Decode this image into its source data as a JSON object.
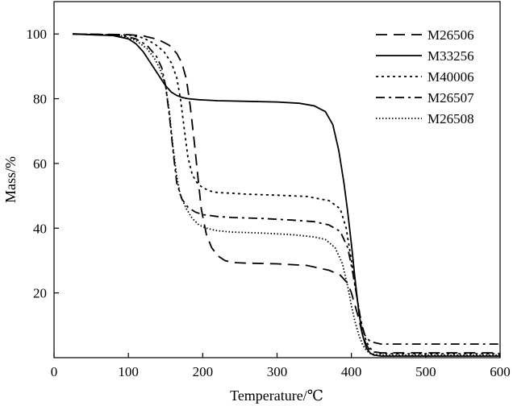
{
  "chart_data": {
    "type": "line",
    "xlabel": "Temperature/℃",
    "ylabel": "Mass/%",
    "xlim": [
      0,
      600
    ],
    "ylim": [
      0,
      110
    ],
    "xticks": [
      0,
      100,
      200,
      300,
      400,
      500,
      600
    ],
    "yticks": [
      20,
      40,
      60,
      80,
      100
    ],
    "grid": false,
    "legend_position": "top-right",
    "series": [
      {
        "name": "M26506",
        "style": "dashed",
        "x": [
          25,
          100,
          120,
          140,
          155,
          165,
          172,
          178,
          183,
          188,
          193,
          198,
          205,
          212,
          220,
          230,
          240,
          260,
          300,
          340,
          370,
          385,
          395,
          400,
          405,
          410,
          415,
          420,
          425,
          430,
          440,
          460,
          500,
          600
        ],
        "y": [
          100,
          99.8,
          99.4,
          98.3,
          96.5,
          94,
          91,
          86,
          78,
          68,
          57,
          46,
          38,
          34,
          31.5,
          30,
          29.4,
          29.2,
          29,
          28.5,
          27,
          25.5,
          23,
          20,
          16,
          12,
          7,
          4,
          2.2,
          1.8,
          1.5,
          1.5,
          1.5,
          1.5
        ]
      },
      {
        "name": "M33256",
        "style": "solid",
        "x": [
          25,
          80,
          100,
          110,
          120,
          130,
          140,
          150,
          158,
          165,
          172,
          180,
          195,
          220,
          260,
          300,
          330,
          350,
          365,
          375,
          383,
          390,
          395,
          400,
          405,
          410,
          415,
          420,
          425,
          430,
          440,
          460,
          500,
          600
        ],
        "y": [
          100,
          99.5,
          98.5,
          97,
          94.5,
          91,
          87.5,
          84,
          82,
          81,
          80.4,
          80,
          79.7,
          79.4,
          79.2,
          79,
          78.6,
          77.8,
          76,
          72,
          64,
          54,
          45,
          35,
          24,
          14,
          7,
          3,
          1.5,
          0.8,
          0.5,
          0.5,
          0.5,
          0.5
        ]
      },
      {
        "name": "M40006",
        "style": "dotted",
        "x": [
          25,
          100,
          120,
          135,
          148,
          158,
          165,
          170,
          175,
          180,
          186,
          193,
          200,
          210,
          220,
          240,
          260,
          300,
          340,
          370,
          385,
          393,
          400,
          405,
          410,
          415,
          420,
          425,
          430,
          440,
          460,
          500,
          600
        ],
        "y": [
          100,
          99.7,
          98.8,
          97,
          94.5,
          91,
          86.5,
          80,
          71,
          62,
          56.5,
          53.8,
          52.5,
          51.5,
          51,
          50.8,
          50.5,
          50.2,
          49.8,
          48.5,
          46,
          40,
          30,
          22,
          15,
          9,
          5,
          3,
          1.8,
          1.3,
          1.2,
          1.2,
          1.2
        ]
      },
      {
        "name": "M26507",
        "style": "dashdot",
        "x": [
          25,
          90,
          110,
          125,
          138,
          145,
          150,
          155,
          160,
          165,
          172,
          180,
          190,
          200,
          220,
          240,
          280,
          320,
          350,
          370,
          385,
          395,
          402,
          408,
          413,
          418,
          425,
          432,
          440,
          460,
          500,
          600
        ],
        "y": [
          100,
          99.6,
          98.5,
          96.5,
          93,
          89.5,
          84,
          75,
          64,
          54,
          49,
          46.5,
          45,
          44.2,
          43.6,
          43.3,
          43,
          42.5,
          42,
          41,
          39,
          34,
          26,
          18,
          11,
          7,
          5,
          4.6,
          4.2,
          4.2,
          4.2,
          4.2
        ]
      },
      {
        "name": "M26508",
        "style": "densely-dotted",
        "x": [
          25,
          90,
          110,
          125,
          135,
          143,
          150,
          155,
          160,
          165,
          170,
          178,
          186,
          195,
          205,
          220,
          240,
          280,
          320,
          350,
          365,
          378,
          388,
          395,
          400,
          405,
          410,
          415,
          420,
          425,
          435,
          460,
          500,
          600
        ],
        "y": [
          100,
          99.5,
          98,
          95.5,
          92.5,
          89,
          84,
          76,
          65,
          56,
          50,
          46,
          43,
          41,
          40,
          39.2,
          38.8,
          38.5,
          38,
          37.3,
          36.5,
          34,
          29,
          22,
          16,
          11,
          7,
          4,
          2.3,
          1.3,
          0.9,
          0.8,
          0.8,
          0.8
        ]
      }
    ]
  }
}
